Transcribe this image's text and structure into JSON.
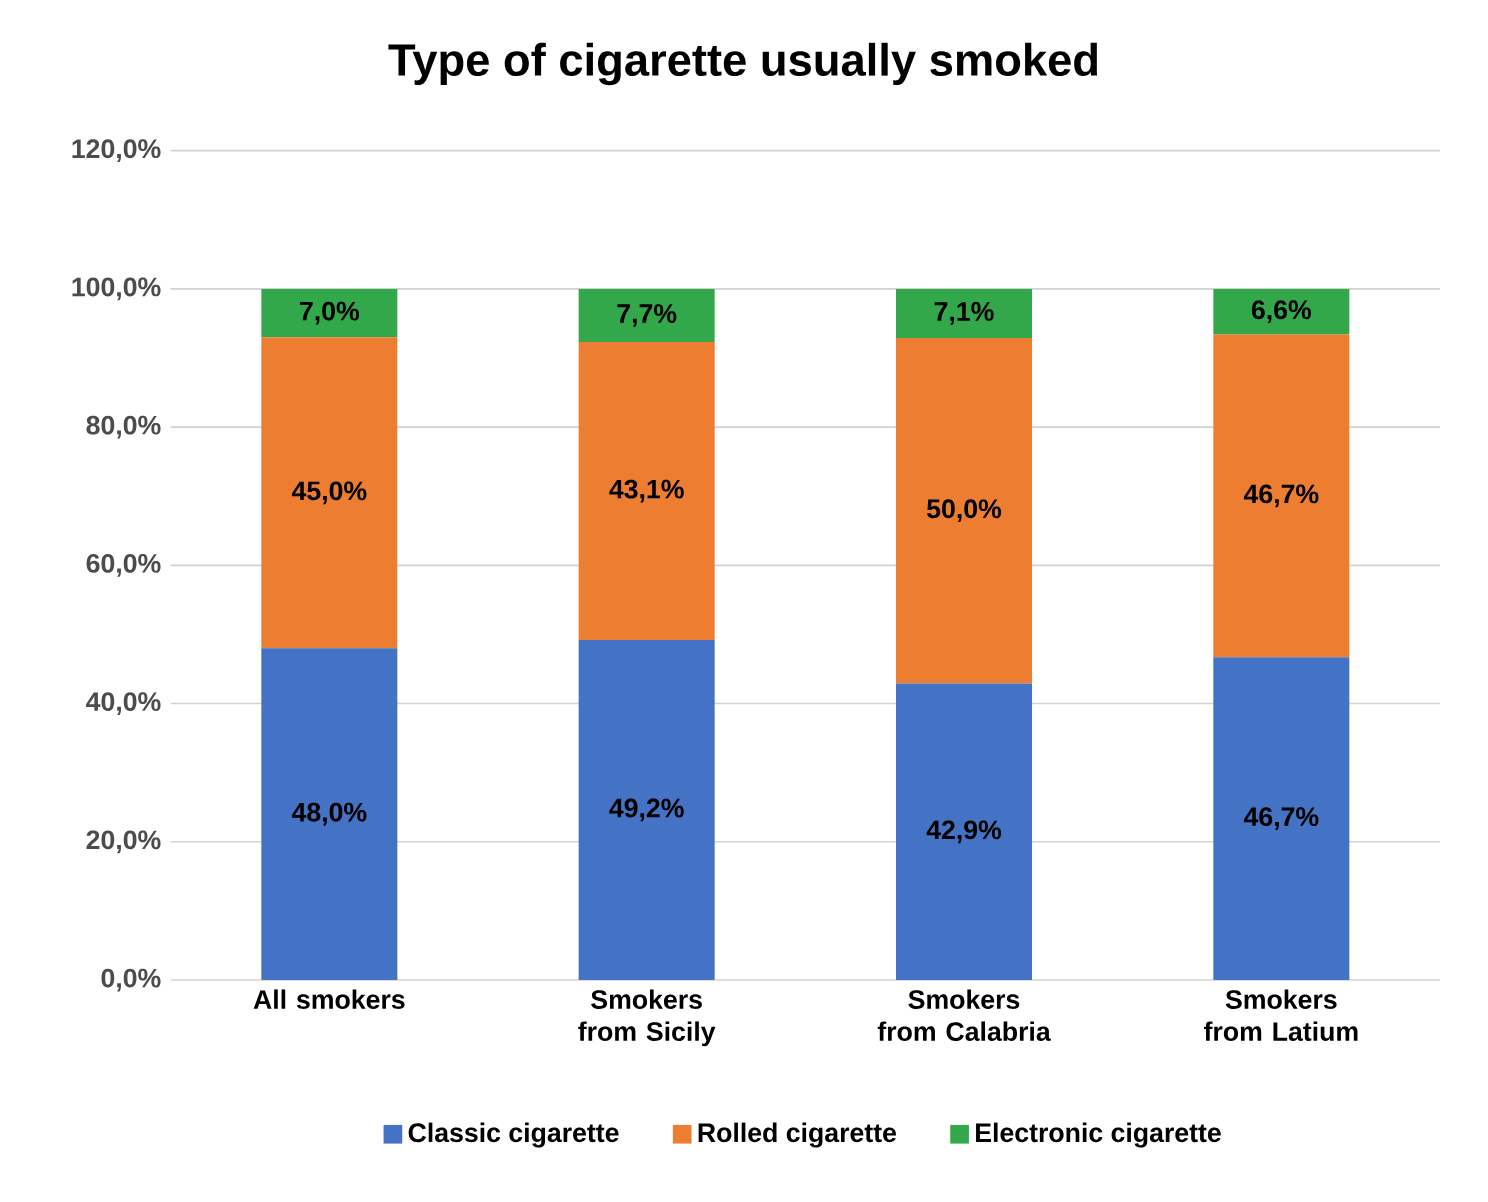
{
  "chart_data": {
    "type": "bar",
    "stacked": true,
    "title": "Type of cigarette usually smoked",
    "categories": [
      "All smokers",
      "Smokers from Sicily",
      "Smokers from Calabria",
      "Smokers from Latium"
    ],
    "series": [
      {
        "name": "Classic cigarette",
        "color": "#4472c4",
        "values": [
          48.0,
          49.2,
          42.9,
          46.7
        ],
        "value_labels": [
          "48,0%",
          "49,2%",
          "42,9%",
          "46,7%"
        ]
      },
      {
        "name": "Rolled cigarette",
        "color": "#ed7d31",
        "values": [
          45.0,
          43.1,
          50.0,
          46.7
        ],
        "value_labels": [
          "45,0%",
          "43,1%",
          "50,0%",
          "46,7%"
        ]
      },
      {
        "name": "Electronic cigarette",
        "color": "#33a84b",
        "values": [
          7.0,
          7.7,
          7.1,
          6.6
        ],
        "value_labels": [
          "7,0%",
          "7,7%",
          "7,1%",
          "6,6%"
        ]
      }
    ],
    "ylim": [
      0,
      120
    ],
    "yticks": [
      {
        "value": 0,
        "label": "0,0%"
      },
      {
        "value": 20,
        "label": "20,0%"
      },
      {
        "value": 40,
        "label": "40,0%"
      },
      {
        "value": 60,
        "label": "60,0%"
      },
      {
        "value": 80,
        "label": "80,0%"
      },
      {
        "value": 100,
        "label": "100,0%"
      },
      {
        "value": 120,
        "label": "120,0%"
      }
    ],
    "grid": "y",
    "legend": "bottom"
  }
}
